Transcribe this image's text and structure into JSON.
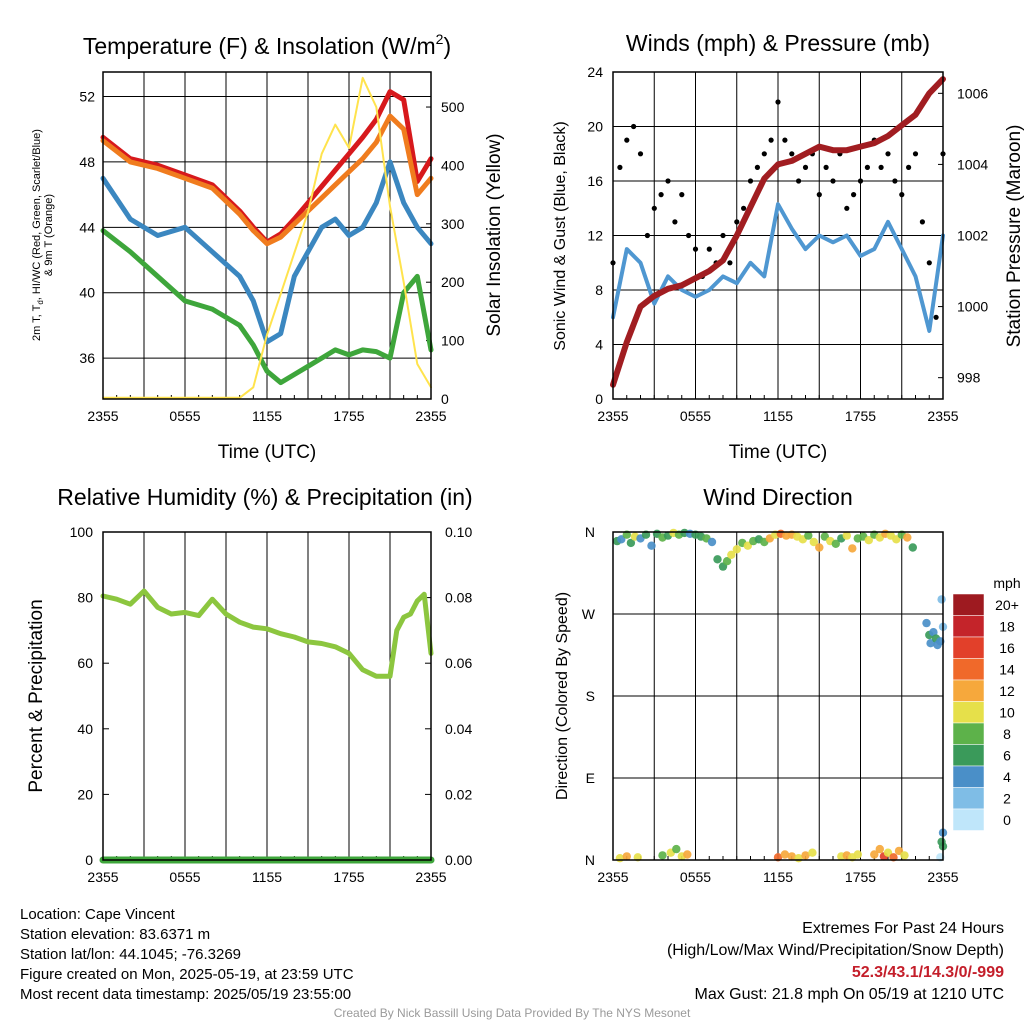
{
  "footer": {
    "location": "Location: Cape Vincent",
    "elevation": "Station elevation: 83.6371 m",
    "latlon": "Station lat/lon: 44.1045; -76.3269",
    "created": "Figure created on Mon, 2025-05-19, at 23:59 UTC",
    "recent": "Most recent data timestamp: 2025/05/19 23:55:00",
    "extremes_title": "Extremes For Past 24 Hours",
    "extremes_sub": "(High/Low/Max Wind/Precipitation/Snow Depth)",
    "extremes_values": "52.3/43.1/14.3/0/-999",
    "max_gust": "Max Gust: 21.8 mph On 05/19 at 1210 UTC",
    "credit": "Created By Nick Bassill Using Data Provided By The NYS Mesonet"
  },
  "chart_data": [
    {
      "type": "line",
      "title": "Temperature (F) & Insolation (W/m",
      "title_sup": "2",
      "title_end": ")",
      "xlabel": "Time (UTC)",
      "ylabel_lines": [
        "2m T, T",
        "d",
        ", HI/WC (Red, Green, Scarlet/Blue)",
        "& 9m T (Orange)"
      ],
      "y2label": "Solar Insolation (Yellow)",
      "x": [
        0,
        2,
        4,
        6,
        8,
        10,
        11,
        12,
        13,
        14,
        15,
        16,
        17,
        18,
        19,
        20,
        21,
        22,
        23,
        24
      ],
      "xticks": [
        "2355",
        "0555",
        "1155",
        "1755",
        "2355"
      ],
      "xticks_at": [
        0,
        6,
        12,
        18,
        24
      ],
      "ylim": [
        33.5,
        53.5
      ],
      "yticks": [
        "36",
        "40",
        "44",
        "48",
        "52"
      ],
      "y2lim": [
        0,
        560
      ],
      "y2ticks": [
        "0",
        "100",
        "200",
        "300",
        "400",
        "500"
      ],
      "series": [
        {
          "color": "#d7191c",
          "values": [
            49.5,
            48.2,
            47.8,
            47.2,
            46.6,
            45.0,
            44.0,
            43.1,
            43.6,
            44.5,
            45.5,
            46.5,
            47.5,
            48.5,
            49.5,
            50.6,
            52.3,
            51.8,
            46.8,
            48.2
          ]
        },
        {
          "color": "#f07c1e",
          "values": [
            49.3,
            48.0,
            47.6,
            47.0,
            46.4,
            44.8,
            43.8,
            43.0,
            43.4,
            44.2,
            45.0,
            45.8,
            46.6,
            47.4,
            48.2,
            49.2,
            50.8,
            50.0,
            46.0,
            47.0
          ]
        },
        {
          "color": "#3b87c0",
          "values": [
            47.0,
            44.5,
            43.5,
            44.0,
            42.5,
            41.0,
            39.5,
            37.0,
            37.5,
            41.0,
            42.5,
            44.0,
            44.5,
            43.5,
            44.0,
            45.5,
            48.0,
            45.5,
            44.0,
            43.0
          ]
        },
        {
          "color": "#3ea63b",
          "values": [
            43.8,
            42.5,
            41.0,
            39.5,
            39.0,
            38.0,
            36.8,
            35.2,
            34.5,
            35.0,
            35.5,
            36.0,
            36.5,
            36.2,
            36.5,
            36.4,
            36.0,
            40.0,
            41.0,
            36.5
          ]
        },
        {
          "color": "#ffe34d",
          "values": [
            2,
            2,
            2,
            2,
            2,
            2,
            20,
            110,
            180,
            250,
            320,
            420,
            470,
            430,
            550,
            500,
            330,
            200,
            60,
            20
          ]
        }
      ]
    },
    {
      "type": "line",
      "title": "Winds (mph) & Pressure (mb)",
      "xlabel": "Time (UTC)",
      "ylabel": "Sonic Wind & Gust (Blue, Black)",
      "y2label": "Station Pressure (Maroon)",
      "xticks": [
        "2355",
        "0555",
        "1155",
        "1755",
        "2355"
      ],
      "xticks_at": [
        0,
        6,
        12,
        18,
        24
      ],
      "ylim": [
        0,
        24
      ],
      "yticks": [
        "0",
        "4",
        "8",
        "12",
        "16",
        "20",
        "24"
      ],
      "y2lim": [
        997.4,
        1006.6
      ],
      "y2ticks": [
        "998",
        "1000",
        "1002",
        "1004",
        "1006"
      ],
      "pressure": {
        "color": "#a11d21",
        "x": [
          0,
          1,
          2,
          3,
          4,
          5,
          6,
          7,
          8,
          9,
          10,
          11,
          12,
          13,
          14,
          15,
          16,
          17,
          18,
          19,
          20,
          21,
          22,
          23,
          24
        ],
        "values": [
          997.8,
          999.0,
          1000.0,
          1000.3,
          1000.5,
          1000.6,
          1000.8,
          1001.0,
          1001.3,
          1002.0,
          1002.8,
          1003.6,
          1004.0,
          1004.1,
          1004.3,
          1004.5,
          1004.4,
          1004.4,
          1004.5,
          1004.6,
          1004.8,
          1005.1,
          1005.4,
          1006.0,
          1006.4
        ]
      },
      "wind": {
        "color": "#4f97d1",
        "x": [
          0,
          1,
          2,
          3,
          4,
          5,
          6,
          7,
          8,
          9,
          10,
          11,
          12,
          13,
          14,
          15,
          16,
          17,
          18,
          19,
          20,
          21,
          22,
          23,
          24
        ],
        "values": [
          6.0,
          11.0,
          10.0,
          7.0,
          9.0,
          8.0,
          7.5,
          8.0,
          9.0,
          8.5,
          10.0,
          9.0,
          14.3,
          12.5,
          11.0,
          12.0,
          11.5,
          12.0,
          10.5,
          11.0,
          13.0,
          11.0,
          9.0,
          5.0,
          12.0
        ]
      },
      "gust": {
        "color": "#000000",
        "x": [
          0,
          0.5,
          1,
          1.5,
          2,
          2.5,
          3,
          3.5,
          4,
          4.5,
          5,
          5.5,
          6,
          6.5,
          7,
          7.5,
          8,
          8.5,
          9,
          9.5,
          10,
          10.5,
          11,
          11.5,
          12,
          12.5,
          13,
          13.5,
          14,
          14.5,
          15,
          15.5,
          16,
          16.5,
          17,
          17.5,
          18,
          18.5,
          19,
          19.5,
          20,
          20.5,
          21,
          21.5,
          22,
          22.5,
          23,
          23.5,
          24
        ],
        "values": [
          10,
          17,
          19,
          20,
          18,
          12,
          14,
          15,
          16,
          13,
          15,
          12,
          11,
          9,
          11,
          10,
          12,
          10,
          13,
          14,
          16,
          17,
          18,
          19,
          21.8,
          19,
          18,
          16,
          17,
          18,
          15,
          17,
          16,
          18,
          14,
          15,
          16,
          17,
          19,
          17,
          18,
          16,
          15,
          17,
          18,
          13,
          10,
          6,
          18
        ]
      }
    },
    {
      "type": "line",
      "title": "Relative Humidity (%) & Precipitation (in)",
      "ylabel": "Percent & Precipitation",
      "xticks": [
        "2355",
        "0555",
        "1155",
        "1755",
        "2355"
      ],
      "xticks_at": [
        0,
        6,
        12,
        18,
        24
      ],
      "ylim": [
        0,
        100
      ],
      "yticks": [
        "0",
        "20",
        "40",
        "60",
        "80",
        "100"
      ],
      "y2lim": [
        0,
        0.1
      ],
      "y2ticks": [
        "0.00",
        "0.02",
        "0.04",
        "0.06",
        "0.08",
        "0.10"
      ],
      "series": [
        {
          "color": "#8cc63f",
          "x": [
            0,
            1,
            2,
            3,
            4,
            5,
            6,
            7,
            8,
            9,
            10,
            11,
            12,
            13,
            14,
            15,
            16,
            17,
            18,
            19,
            20,
            21,
            21.5,
            22,
            22.5,
            23,
            23.5,
            24
          ],
          "values": [
            80.5,
            79.5,
            78,
            82,
            77,
            75,
            75.5,
            74.5,
            79.5,
            75,
            72.5,
            71,
            70.5,
            69,
            68,
            66.5,
            66,
            65,
            63,
            58,
            56,
            56,
            70,
            74,
            75,
            79,
            81,
            63
          ]
        },
        {
          "color": "#3ea63b",
          "x": [
            0,
            24
          ],
          "values": [
            0,
            0
          ]
        }
      ]
    },
    {
      "type": "scatter",
      "title": "Wind Direction",
      "ylabel": "Direction (Colored By Speed)",
      "xticks": [
        "2355",
        "0555",
        "1155",
        "1755",
        "2355"
      ],
      "xticks_at": [
        0,
        6,
        12,
        18,
        24
      ],
      "ylim": [
        0,
        360
      ],
      "yticks": [
        "N",
        "E",
        "S",
        "W",
        "N"
      ],
      "legend_title": "mph",
      "legend_labels": [
        "0",
        "2",
        "4",
        "6",
        "8",
        "10",
        "12",
        "14",
        "16",
        "18",
        "20+"
      ],
      "legend_colors": [
        "#bfe6fa",
        "#7fbde6",
        "#4a8fc8",
        "#3a9a5a",
        "#5db24a",
        "#e6e04a",
        "#f6a83c",
        "#f0692a",
        "#e2402a",
        "#c4242a",
        "#9e1a20"
      ],
      "points": [
        [
          0.3,
          350,
          7
        ],
        [
          0.6,
          352,
          5
        ],
        [
          1.0,
          357,
          9
        ],
        [
          1.3,
          348,
          6
        ],
        [
          1.6,
          355,
          11
        ],
        [
          2.0,
          353,
          4
        ],
        [
          2.4,
          357,
          7
        ],
        [
          2.8,
          345,
          5
        ],
        [
          3.2,
          358,
          6
        ],
        [
          3.6,
          354,
          9
        ],
        [
          4.0,
          356,
          7
        ],
        [
          4.4,
          359,
          10
        ],
        [
          4.8,
          357,
          8
        ],
        [
          5.2,
          359,
          6
        ],
        [
          5.6,
          358,
          5
        ],
        [
          6.0,
          357,
          7
        ],
        [
          6.4,
          355,
          6
        ],
        [
          6.8,
          353,
          9
        ],
        [
          7.2,
          349,
          5
        ],
        [
          7.6,
          330,
          6
        ],
        [
          8.0,
          322,
          7
        ],
        [
          8.3,
          328,
          8
        ],
        [
          8.6,
          335,
          10
        ],
        [
          9.0,
          341,
          11
        ],
        [
          9.4,
          348,
          9
        ],
        [
          9.8,
          345,
          10
        ],
        [
          10.2,
          350,
          8
        ],
        [
          10.6,
          352,
          7
        ],
        [
          11.0,
          349,
          9
        ],
        [
          11.4,
          353,
          12
        ],
        [
          11.8,
          357,
          11
        ],
        [
          12.2,
          358,
          14
        ],
        [
          12.6,
          356,
          12
        ],
        [
          13.0,
          357,
          13
        ],
        [
          13.4,
          355,
          10
        ],
        [
          13.8,
          352,
          11
        ],
        [
          14.2,
          356,
          9
        ],
        [
          14.6,
          349,
          10
        ],
        [
          15.0,
          343,
          12
        ],
        [
          15.4,
          355,
          9
        ],
        [
          15.8,
          350,
          11
        ],
        [
          16.2,
          347,
          8
        ],
        [
          16.6,
          353,
          7
        ],
        [
          17.0,
          356,
          10
        ],
        [
          17.4,
          342,
          12
        ],
        [
          17.8,
          353,
          9
        ],
        [
          18.2,
          355,
          8
        ],
        [
          18.6,
          351,
          11
        ],
        [
          19.0,
          357,
          9
        ],
        [
          19.4,
          354,
          10
        ],
        [
          19.8,
          358,
          12
        ],
        [
          20.2,
          356,
          11
        ],
        [
          20.6,
          352,
          10
        ],
        [
          21.0,
          357,
          9
        ],
        [
          21.4,
          354,
          12
        ],
        [
          21.8,
          343,
          7
        ],
        [
          22.8,
          260,
          4
        ],
        [
          23.0,
          247,
          6
        ],
        [
          23.1,
          238,
          5
        ],
        [
          23.3,
          250,
          4
        ],
        [
          23.5,
          243,
          6
        ],
        [
          23.6,
          236,
          5
        ],
        [
          23.8,
          240,
          4
        ],
        [
          24.0,
          256,
          3
        ],
        [
          23.9,
          286,
          2
        ],
        [
          0.5,
          2,
          10
        ],
        [
          1.0,
          4,
          12
        ],
        [
          1.8,
          3,
          11
        ],
        [
          3.6,
          5,
          9
        ],
        [
          4.2,
          8,
          10
        ],
        [
          4.6,
          12,
          8
        ],
        [
          5.0,
          4,
          11
        ],
        [
          5.4,
          6,
          12
        ],
        [
          12.0,
          3,
          14
        ],
        [
          12.5,
          6,
          13
        ],
        [
          13.0,
          4,
          12
        ],
        [
          13.5,
          2,
          11
        ],
        [
          14.0,
          5,
          12
        ],
        [
          14.5,
          8,
          10
        ],
        [
          16.6,
          4,
          10
        ],
        [
          17.0,
          5,
          12
        ],
        [
          17.4,
          3,
          10
        ],
        [
          17.8,
          6,
          11
        ],
        [
          19.0,
          6,
          12
        ],
        [
          19.4,
          12,
          13
        ],
        [
          19.7,
          4,
          16
        ],
        [
          20.0,
          8,
          10
        ],
        [
          20.4,
          3,
          14
        ],
        [
          20.8,
          10,
          12
        ],
        [
          21.2,
          5,
          11
        ],
        [
          23.9,
          20,
          7
        ],
        [
          24.0,
          15,
          6
        ],
        [
          23.8,
          3,
          0
        ],
        [
          24.0,
          30,
          5
        ]
      ]
    }
  ]
}
